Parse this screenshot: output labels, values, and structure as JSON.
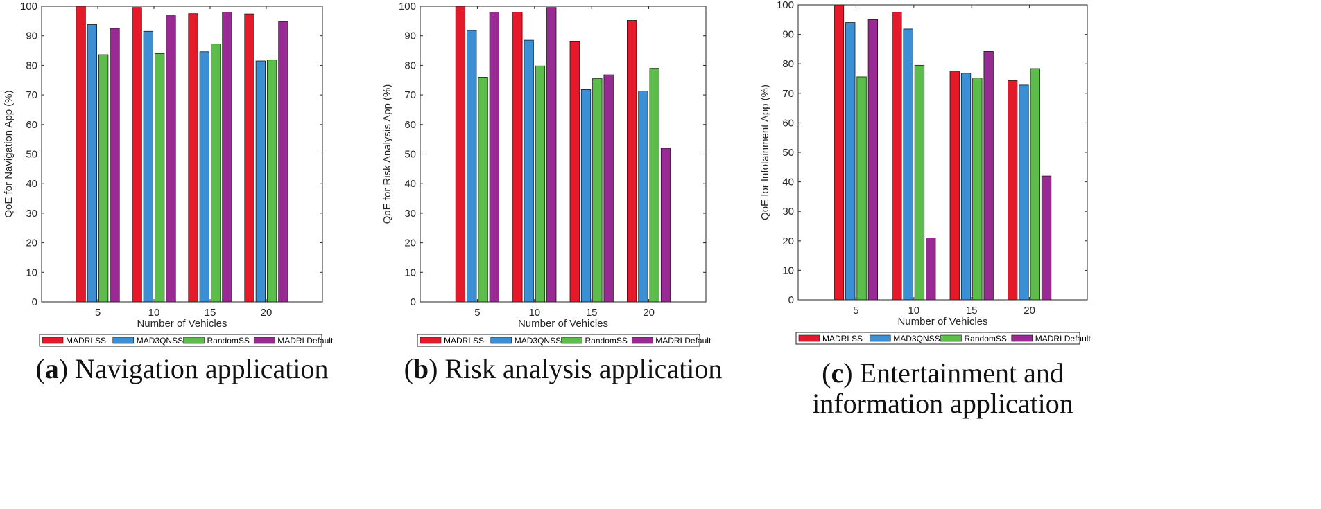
{
  "chart_data": [
    {
      "type": "bar",
      "xlabel": "Number of Vehicles",
      "ylabel": "QoE for Navigation App (%)",
      "categories": [
        "5",
        "10",
        "15",
        "20"
      ],
      "ylim": [
        0,
        100
      ],
      "yticks": [
        0,
        10,
        20,
        30,
        40,
        50,
        60,
        70,
        80,
        90,
        100
      ],
      "grid": false,
      "legend_placement": "bottom",
      "series": [
        {
          "name": "MADRLSS",
          "values": [
            100,
            99.6,
            97.5,
            97.4
          ]
        },
        {
          "name": "MAD3QNSS",
          "values": [
            93.8,
            91.5,
            84.6,
            81.5
          ]
        },
        {
          "name": "RandomSS",
          "values": [
            83.6,
            84.0,
            87.2,
            81.8
          ]
        },
        {
          "name": "MADRLDefault",
          "values": [
            92.5,
            96.8,
            98.0,
            94.8
          ]
        }
      ],
      "caption": {
        "letter": "a",
        "text": "Navigation application"
      }
    },
    {
      "type": "bar",
      "xlabel": "Number of Vehicles",
      "ylabel": "QoE for Risk Analysis App (%)",
      "categories": [
        "5",
        "10",
        "15",
        "20"
      ],
      "ylim": [
        0,
        100
      ],
      "yticks": [
        0,
        10,
        20,
        30,
        40,
        50,
        60,
        70,
        80,
        90,
        100
      ],
      "grid": false,
      "legend_placement": "bottom",
      "series": [
        {
          "name": "MADRLSS",
          "values": [
            100,
            98.0,
            88.2,
            95.2
          ]
        },
        {
          "name": "MAD3QNSS",
          "values": [
            91.8,
            88.5,
            71.8,
            71.3
          ]
        },
        {
          "name": "RandomSS",
          "values": [
            76.0,
            79.8,
            75.6,
            79.0
          ]
        },
        {
          "name": "MADRLDefault",
          "values": [
            98.0,
            99.6,
            76.8,
            52.0
          ]
        }
      ],
      "caption": {
        "letter": "b",
        "text": "Risk analysis application"
      }
    },
    {
      "type": "bar",
      "xlabel": "Number of Vehicles",
      "ylabel": "QoE for Infotainment App (%)",
      "categories": [
        "5",
        "10",
        "15",
        "20"
      ],
      "ylim": [
        0,
        100
      ],
      "yticks": [
        0,
        10,
        20,
        30,
        40,
        50,
        60,
        70,
        80,
        90,
        100
      ],
      "grid": false,
      "legend_placement": "bottom",
      "series": [
        {
          "name": "MADRLSS",
          "values": [
            100,
            97.5,
            77.5,
            74.3
          ]
        },
        {
          "name": "MAD3QNSS",
          "values": [
            94.0,
            91.8,
            76.8,
            72.8
          ]
        },
        {
          "name": "RandomSS",
          "values": [
            75.6,
            79.5,
            75.2,
            78.4
          ]
        },
        {
          "name": "MADRLDefault",
          "values": [
            95.0,
            21.0,
            84.2,
            42.0
          ]
        }
      ],
      "caption": {
        "letter": "c",
        "text": "Entertainment and information application"
      }
    }
  ],
  "colors": {
    "MADRLSS": "#e41a2b",
    "MAD3QNSS": "#3b8fd4",
    "RandomSS": "#5cbd4a",
    "MADRLDefault": "#992a93"
  }
}
